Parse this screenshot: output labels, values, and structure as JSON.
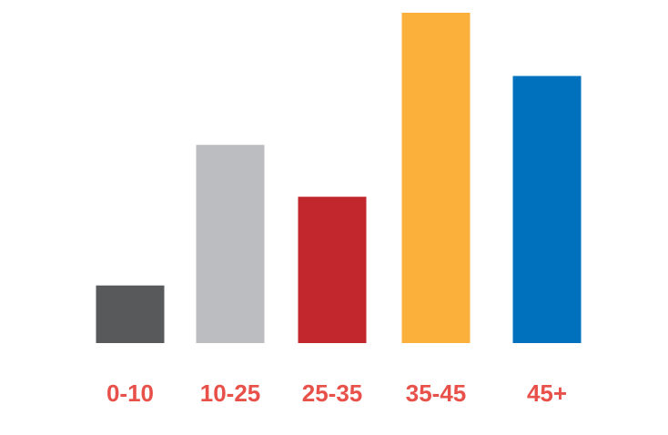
{
  "chart_data": {
    "type": "bar",
    "categories": [
      "0-10",
      "10-25",
      "25-35",
      "35-45",
      "45+"
    ],
    "values": [
      6.1,
      21.0,
      15.5,
      35.0,
      28.3
    ],
    "colors": [
      "#58595b",
      "#bcbdc0",
      "#c1272d",
      "#fbb03b",
      "#0071bc"
    ],
    "label_color": "#e8514a",
    "ylim": [
      0,
      35
    ],
    "grid": false,
    "axes_visible": false,
    "legend": "none",
    "title": "",
    "xlabel": "",
    "ylabel": ""
  }
}
